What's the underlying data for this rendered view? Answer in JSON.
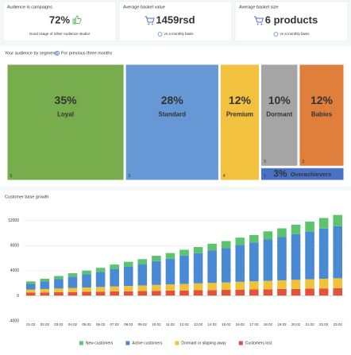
{
  "kpis": [
    {
      "label": "Audience in campaigns",
      "value": "72%",
      "note": "Good usage of Silver Audience studio!"
    },
    {
      "label": "Average basket value",
      "value": "1459rsd",
      "note": "vs a monthly basis"
    },
    {
      "label": "Average basket size",
      "value": "6 products",
      "note": "vs a monthly basis"
    }
  ],
  "segments": {
    "title": "Your audience by segments",
    "info": "For previous three months",
    "items": [
      {
        "name": "Loyal",
        "value": 35,
        "label": "35%",
        "rank": 6,
        "color": "#78ad4e"
      },
      {
        "name": "Standard",
        "value": 28,
        "label": "28%",
        "rank": 5,
        "color": "#6598d4"
      },
      {
        "name": "Premium",
        "value": 12,
        "label": "12%",
        "rank": 4,
        "color": "#f2c23e"
      },
      {
        "name": "Dormant",
        "value": 10,
        "label": "10%",
        "rank": 3,
        "color": "#a5a5a5"
      },
      {
        "name": "Babies",
        "value": 12,
        "label": "12%",
        "rank": 2,
        "color": "#e07e3c"
      },
      {
        "name": "Overachievers",
        "value": 3,
        "label": "3%",
        "rank": 1,
        "color": "#4a72c4"
      }
    ]
  },
  "chart_data": {
    "type": "bar",
    "stacked": true,
    "title": "Customer base growth",
    "categories": [
      "01.02",
      "02.02",
      "03.02",
      "04.02",
      "05.02",
      "06.02",
      "07.02",
      "08.02",
      "09.02",
      "10.02",
      "11.02",
      "12.02",
      "13.02",
      "14.02",
      "15.02",
      "16.02",
      "17.02",
      "18.02",
      "19.02",
      "20.02",
      "21.02",
      "22.02",
      "23.02"
    ],
    "series": [
      {
        "name": "New customers",
        "color": "#5cc46e",
        "values": [
          400,
          450,
          500,
          550,
          600,
          650,
          700,
          750,
          800,
          850,
          900,
          950,
          1000,
          1050,
          1100,
          1150,
          1200,
          1300,
          1400,
          1500,
          1600,
          1700,
          1800
        ]
      },
      {
        "name": "Active customers",
        "color": "#4a8ad4",
        "values": [
          900,
          1200,
          1500,
          1800,
          2100,
          2400,
          2800,
          3100,
          3400,
          3800,
          4100,
          4500,
          4800,
          5200,
          5500,
          5900,
          6200,
          6600,
          6900,
          7300,
          7600,
          8000,
          8300
        ]
      },
      {
        "name": "Dormant or slipping away",
        "color": "#f0c23a",
        "values": [
          500,
          550,
          600,
          650,
          700,
          750,
          800,
          850,
          900,
          950,
          1000,
          1050,
          1100,
          1150,
          1200,
          1250,
          1300,
          1350,
          1400,
          1450,
          1500,
          1550,
          1600
        ]
      },
      {
        "name": "Customers lost",
        "color": "#e0533c",
        "values": [
          500,
          530,
          560,
          600,
          630,
          660,
          690,
          720,
          750,
          790,
          820,
          850,
          880,
          910,
          940,
          980,
          1010,
          1040,
          1070,
          1100,
          1140,
          1170,
          1200
        ]
      }
    ],
    "ylim": [
      -4000,
      14000
    ],
    "yticks": [
      -4000,
      0,
      4000,
      8000,
      12000
    ],
    "grid": true,
    "legend": "bottom"
  }
}
